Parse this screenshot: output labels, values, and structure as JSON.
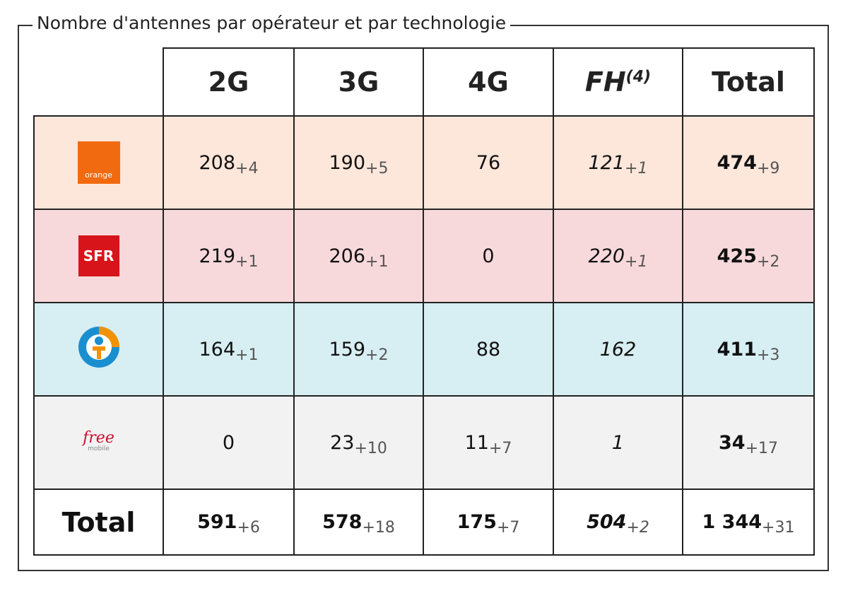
{
  "legend": "Nombre d'antennes par opérateur et par technologie",
  "table": {
    "header": [
      {
        "text": "2G"
      },
      {
        "text": "3G"
      },
      {
        "text": "4G"
      },
      {
        "text": "FH",
        "note": "(4)"
      },
      {
        "text": "Total"
      }
    ],
    "rows": [
      {
        "operator": {
          "logo": "orange"
        },
        "cells": [
          {
            "value": "208",
            "delta": "+4"
          },
          {
            "value": "190",
            "delta": "+5"
          },
          {
            "value": "76"
          },
          {
            "value": "121",
            "delta": "+1"
          },
          {
            "value": "474",
            "delta": "+9"
          }
        ]
      },
      {
        "operator": {
          "logo": "SFR"
        },
        "cells": [
          {
            "value": "219",
            "delta": "+1"
          },
          {
            "value": "206",
            "delta": "+1"
          },
          {
            "value": "0"
          },
          {
            "value": "220",
            "delta": "+1"
          },
          {
            "value": "425",
            "delta": "+2"
          }
        ]
      },
      {
        "operator": {},
        "cells": [
          {
            "value": "164",
            "delta": "+1"
          },
          {
            "value": "159",
            "delta": "+2"
          },
          {
            "value": "88"
          },
          {
            "value": "162"
          },
          {
            "value": "411",
            "delta": "+3"
          }
        ]
      },
      {
        "operator": {
          "logo": "free",
          "sub": "mobile"
        },
        "cells": [
          {
            "value": "0"
          },
          {
            "value": "23",
            "delta": "+10"
          },
          {
            "value": "11",
            "delta": "+7"
          },
          {
            "value": "1"
          },
          {
            "value": "34",
            "delta": "+17"
          }
        ]
      }
    ],
    "total": {
      "label": "Total",
      "cells": [
        {
          "value": "591",
          "delta": "+6"
        },
        {
          "value": "578",
          "delta": "+18"
        },
        {
          "value": "175",
          "delta": "+7"
        },
        {
          "value": "504",
          "delta": "+2"
        },
        {
          "value": "1 344",
          "delta": "+31"
        }
      ]
    }
  }
}
